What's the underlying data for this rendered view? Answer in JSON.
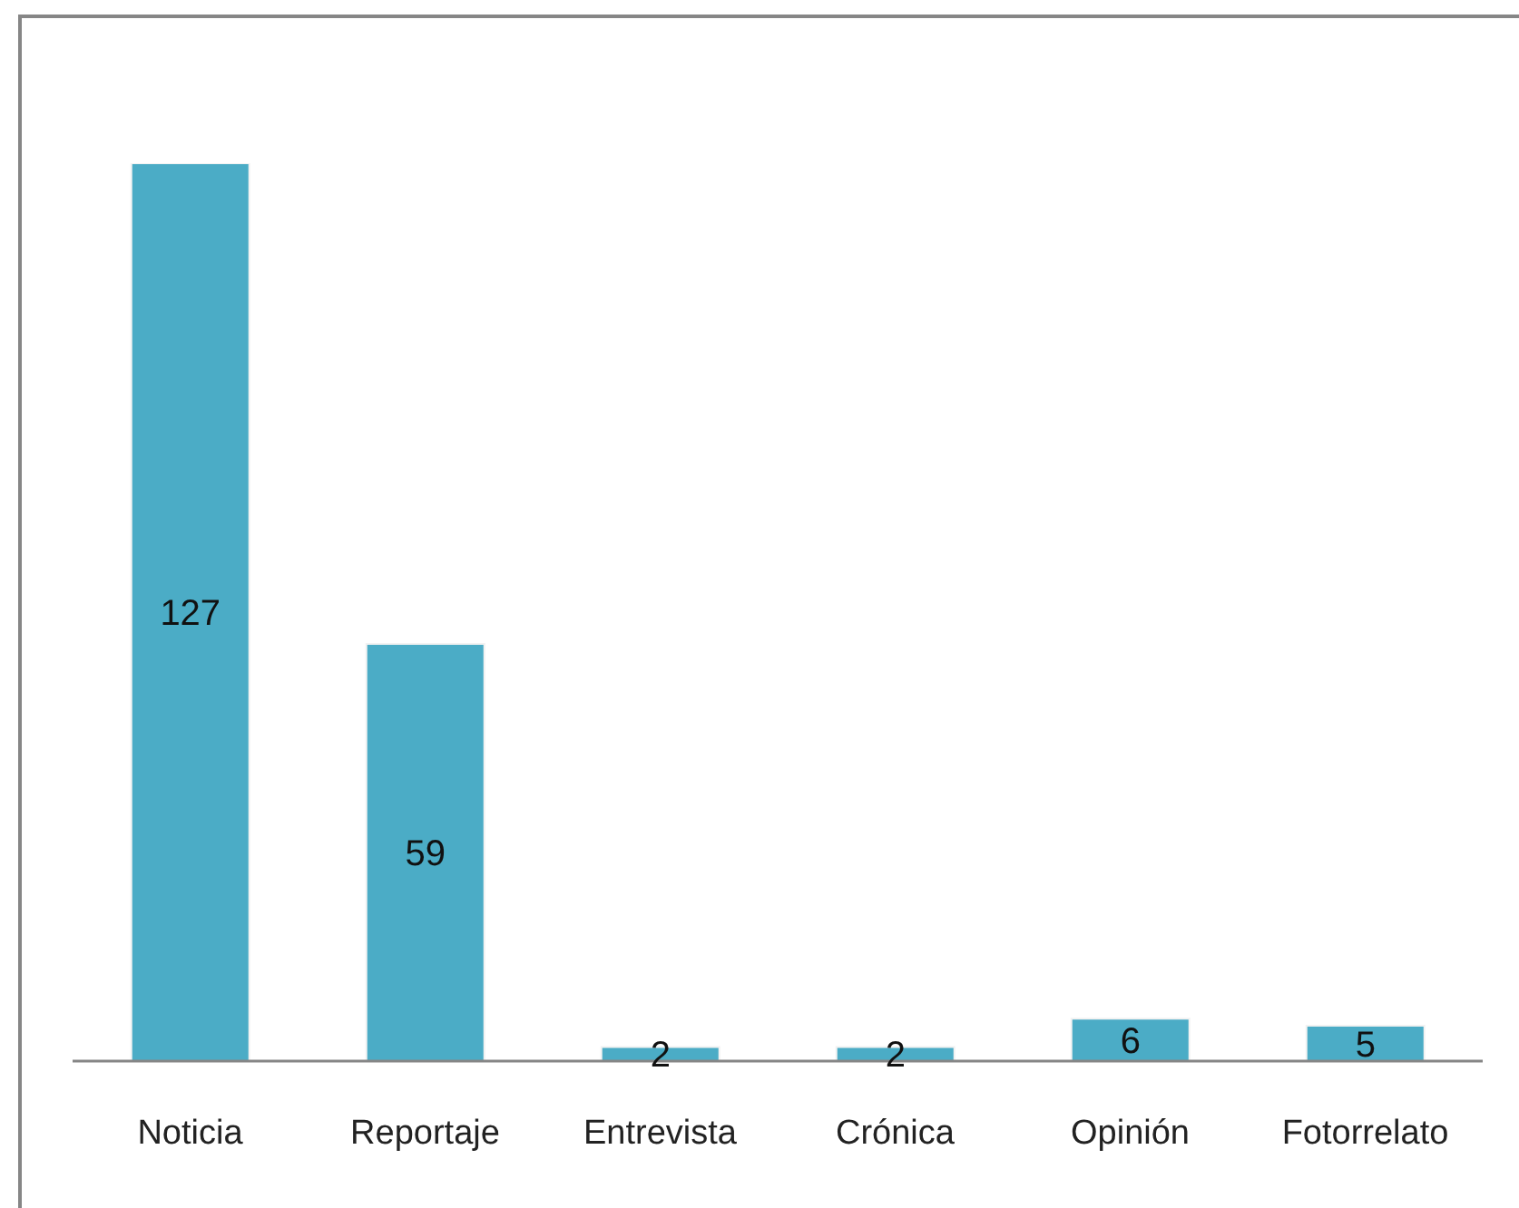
{
  "chart_data": {
    "type": "bar",
    "categories": [
      "Noticia",
      "Reportaje",
      "Entrevista",
      "Crónica",
      "Opinión",
      "Fotorrelato"
    ],
    "values": [
      127,
      59,
      2,
      2,
      6,
      5
    ],
    "color": "#4bacc6",
    "data_labels": true
  }
}
